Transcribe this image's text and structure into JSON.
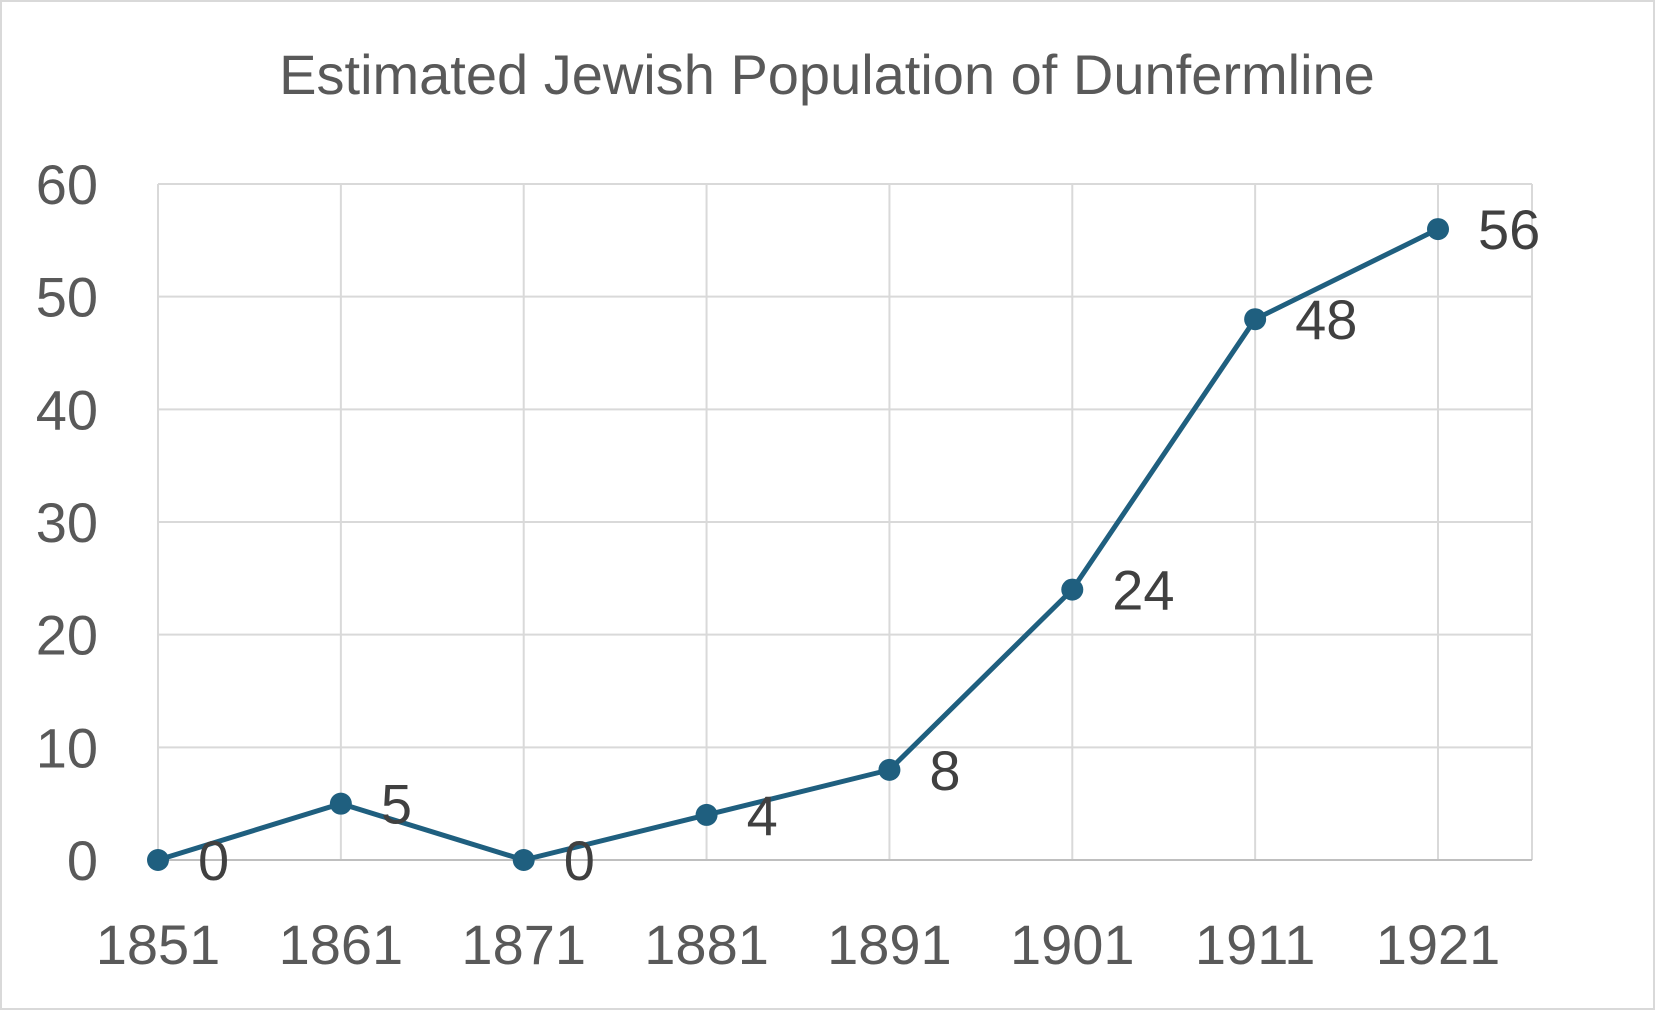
{
  "chart_data": {
    "type": "line",
    "title": "Estimated Jewish Population of Dunfermline",
    "xlabel": "",
    "ylabel": "",
    "categories": [
      "1851",
      "1861",
      "1871",
      "1881",
      "1891",
      "1901",
      "1911",
      "1921"
    ],
    "series": [
      {
        "values": [
          0,
          5,
          0,
          4,
          8,
          24,
          48,
          56
        ],
        "color": "#1f5f7f",
        "marker": "circle",
        "data_labels": [
          "0",
          "5",
          "0",
          "4",
          "8",
          "24",
          "48",
          "56"
        ]
      }
    ],
    "ylim": [
      0,
      60
    ],
    "yticks": [
      "0",
      "10",
      "20",
      "30",
      "40",
      "50",
      "60"
    ],
    "grid": {
      "horizontal": true,
      "vertical": true,
      "color": "#d9d9d9"
    },
    "legend": "none"
  }
}
